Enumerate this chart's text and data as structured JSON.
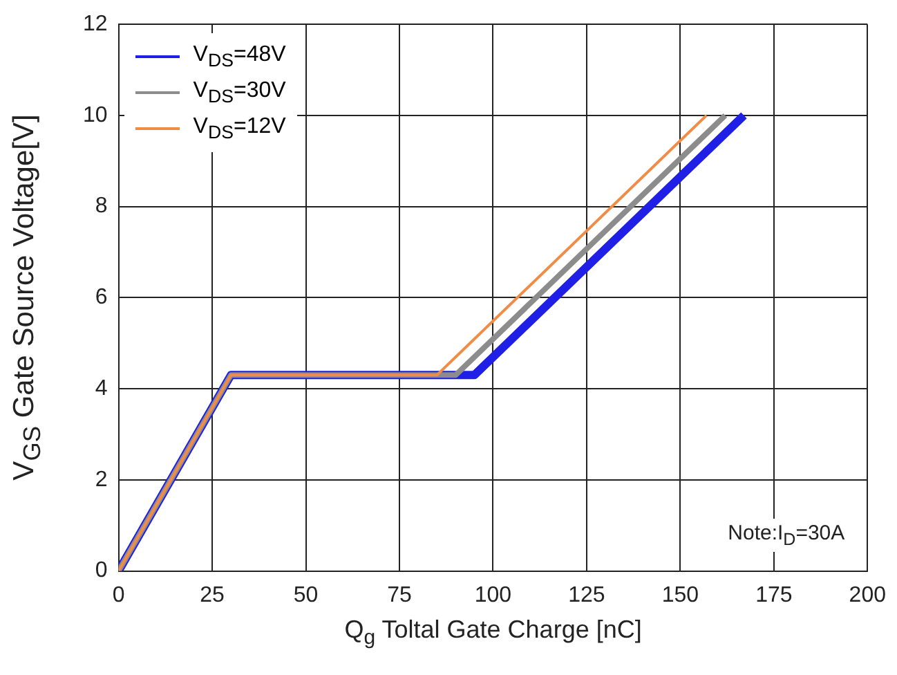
{
  "chart_data": {
    "type": "line",
    "xlabel": "Q$_{g}$ Toltal Gate Charge [nC]",
    "ylabel": "V$_{GS}$ Gate Source Voltage[V]",
    "xlim": [
      0,
      200
    ],
    "xticks": [
      0,
      25,
      50,
      75,
      100,
      125,
      150,
      175,
      200
    ],
    "ylim": [
      0,
      12
    ],
    "yticks": [
      0,
      2,
      4,
      6,
      8,
      10,
      12
    ],
    "grid": true,
    "legend": "top left",
    "marker": "none",
    "line_style": "solid",
    "annotations": [
      "Note:I$_{D}$=30A"
    ],
    "series": [
      {
        "name": "V$_{DS}$=48V",
        "color": "#1f1fe6",
        "x": [
          0,
          30,
          95,
          167
        ],
        "values": [
          0,
          4.3,
          4.3,
          10
        ]
      },
      {
        "name": "V$_{DS}$=30V",
        "color": "#8c8c8c",
        "x": [
          0,
          30,
          90,
          162
        ],
        "values": [
          0,
          4.3,
          4.3,
          10
        ]
      },
      {
        "name": "V$_{DS}$=12V",
        "color": "#f08c46",
        "x": [
          0,
          30,
          85,
          157
        ],
        "values": [
          0,
          4.3,
          4.3,
          10
        ]
      }
    ]
  }
}
